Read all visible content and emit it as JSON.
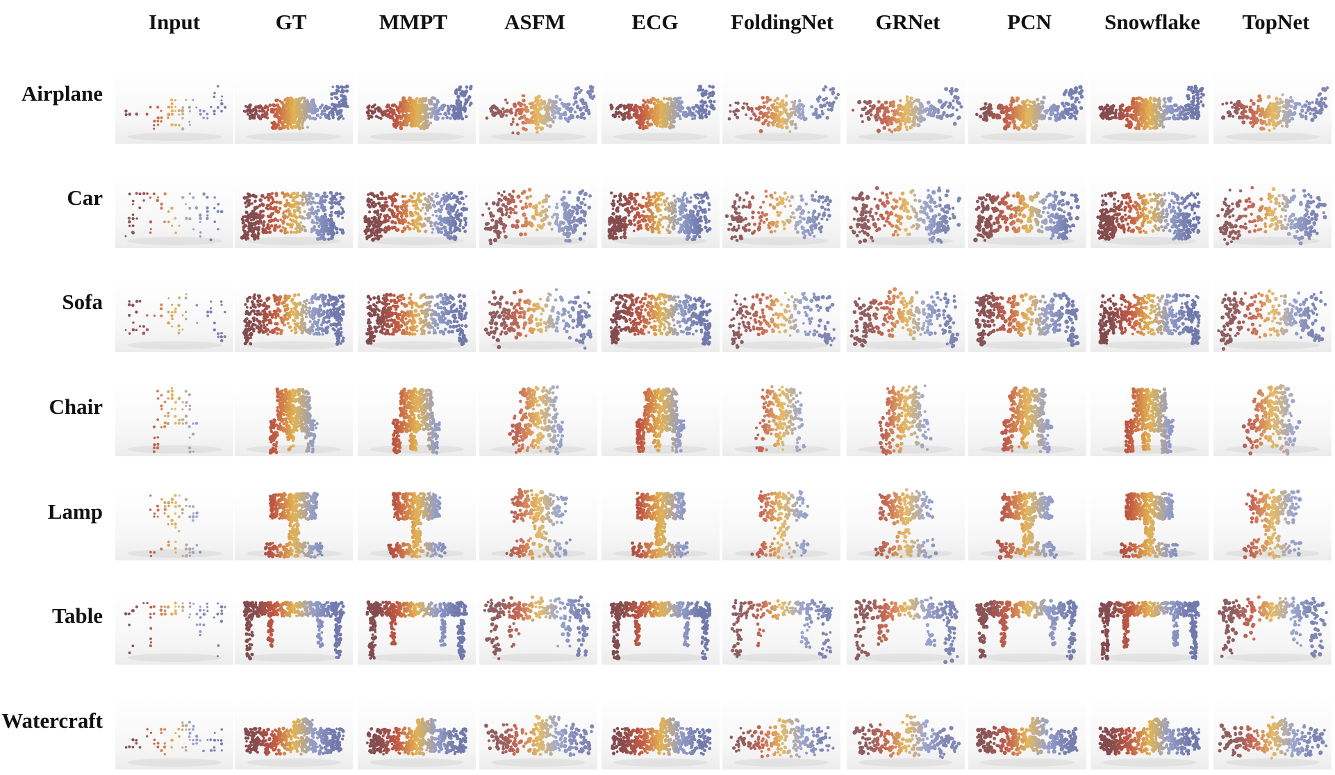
{
  "columns": [
    "Input",
    "GT",
    "MMPT",
    "ASFM",
    "ECG",
    "FoldingNet",
    "GRNet",
    "PCN",
    "Snowflake",
    "TopNet"
  ],
  "rows": [
    "Airplane",
    "Car",
    "Sofa",
    "Chair",
    "Lamp",
    "Table",
    "Watercraft"
  ],
  "palette": {
    "left": "#7e4346",
    "midwarm": "#c0503a",
    "center": "#e2b04a",
    "midcool": "#8e99c6",
    "right": "#6a73a8",
    "background": "#ffffff"
  },
  "cell_style": {
    "Input": "sparse-wire",
    "GT": "dense",
    "MMPT": "dense",
    "ASFM": "noisy",
    "ECG": "dense",
    "FoldingNet": "smooth-noisy",
    "GRNet": "noisy",
    "PCN": "medium",
    "Snowflake": "dense",
    "TopNet": "noisy"
  }
}
